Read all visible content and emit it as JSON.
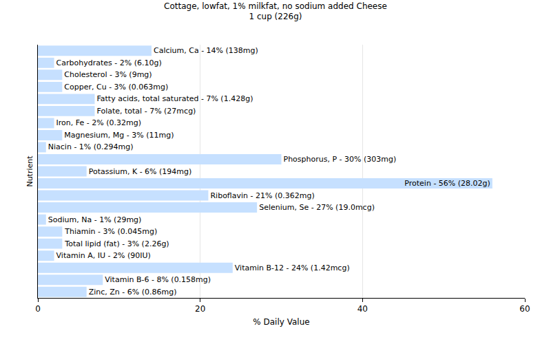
{
  "chart_data": {
    "type": "bar",
    "title": "Cottage, lowfat, 1% milkfat, no sodium added Cheese",
    "subtitle": "1 cup (226g)",
    "x_label": "% Daily Value",
    "y_label": "Nutrient",
    "orientation": "horizontal",
    "categories": [
      "Calcium, Ca - 14% (138mg)",
      "Carbohydrates - 2% (6.10g)",
      "Cholesterol - 3% (9mg)",
      "Copper, Cu - 3% (0.063mg)",
      "Fatty acids, total saturated - 7% (1.428g)",
      "Folate, total - 7% (27mcg)",
      "Iron, Fe - 2% (0.32mg)",
      "Magnesium, Mg - 3% (11mg)",
      "Niacin - 1% (0.294mg)",
      "Phosphorus, P - 30% (303mg)",
      "Potassium, K - 6% (194mg)",
      "Protein - 56% (28.02g)",
      "Riboflavin - 21% (0.362mg)",
      "Selenium, Se - 27% (19.0mcg)",
      "Sodium, Na - 1% (29mg)",
      "Thiamin - 3% (0.045mg)",
      "Total lipid (fat) - 3% (2.26g)",
      "Vitamin A, IU - 2% (90IU)",
      "Vitamin B-12 - 24% (1.42mcg)",
      "Vitamin B-6 - 8% (0.158mg)",
      "Zinc, Zn - 6% (0.86mg)"
    ],
    "values": [
      14,
      2,
      3,
      3,
      7,
      7,
      2,
      3,
      1,
      30,
      6,
      56,
      21,
      27,
      1,
      3,
      3,
      2,
      24,
      8,
      6
    ],
    "color": "#c6e0ff",
    "xlim": [
      0,
      60
    ],
    "xticks": [
      0,
      20,
      40,
      60
    ],
    "grid": true,
    "tick_labels": "x"
  }
}
